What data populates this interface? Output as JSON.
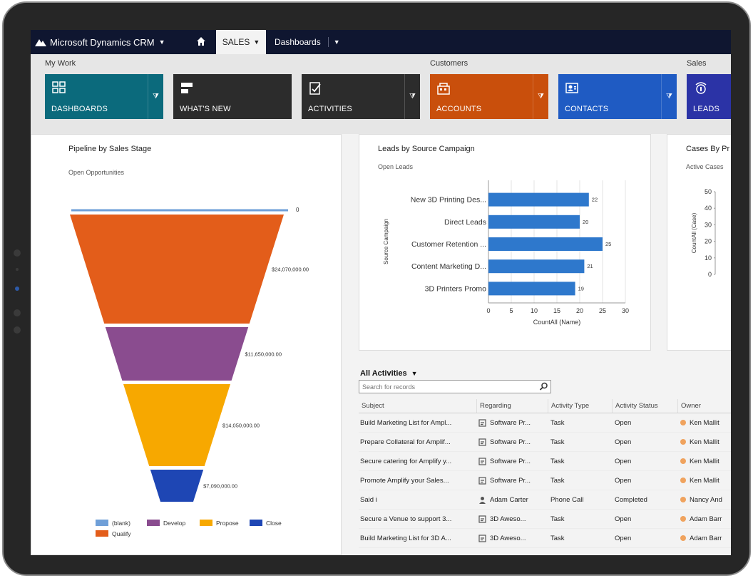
{
  "nav": {
    "brand": "Microsoft Dynamics CRM",
    "active_area": "SALES",
    "dashboards": "Dashboards"
  },
  "ribbon": {
    "groups": [
      "My Work",
      "Customers",
      "Sales"
    ],
    "tiles": [
      {
        "label": "DASHBOARDS",
        "color": "#0b6a7c",
        "icon": "dashboard-icon"
      },
      {
        "label": "WHAT'S NEW",
        "color": "#2c2c2c",
        "icon": "whats-new-icon"
      },
      {
        "label": "ACTIVITIES",
        "color": "#2c2c2c",
        "icon": "activities-icon"
      },
      {
        "label": "ACCOUNTS",
        "color": "#c94f0c",
        "icon": "accounts-icon"
      },
      {
        "label": "CONTACTS",
        "color": "#1f5bc3",
        "icon": "contacts-icon"
      },
      {
        "label": "LEADS",
        "color": "#2b33a6",
        "icon": "leads-icon"
      }
    ]
  },
  "pipeline": {
    "title": "Pipeline by Sales Stage",
    "subtitle": "Open Opportunities"
  },
  "leads_chart": {
    "title": "Leads by Source Campaign",
    "subtitle": "Open Leads"
  },
  "cases": {
    "title": "Cases By Pr",
    "subtitle": "Active Cases",
    "ylabel": "CountAll (Case)",
    "ticks": [
      "50",
      "40",
      "30",
      "20",
      "10",
      "0"
    ]
  },
  "chart_data": [
    {
      "type": "funnel",
      "title": "Pipeline by Sales Stage",
      "subtitle": "Open Opportunities",
      "categories": [
        "(blank)",
        "Qualify",
        "Develop",
        "Propose",
        "Close"
      ],
      "values": [
        0,
        24070000,
        11650000,
        14050000,
        7090000
      ],
      "value_labels": [
        "0",
        "$24,070,000.00",
        "$11,650,000.00",
        "$14,050,000.00",
        "$7,090,000.00"
      ],
      "colors": [
        "#6f9fd8",
        "#e35d1a",
        "#8a4c8f",
        "#f7a800",
        "#1e46b4"
      ],
      "legend": [
        "(blank)",
        "Develop",
        "Propose",
        "Close",
        "Qualify"
      ],
      "legend_placement": "bottom"
    },
    {
      "type": "bar",
      "orientation": "horizontal",
      "title": "Leads by Source Campaign",
      "subtitle": "Open Leads",
      "categories": [
        "New 3D Printing Des...",
        "Direct Leads",
        "Customer Retention ...",
        "Content Marketing D...",
        "3D Printers Promo"
      ],
      "values": [
        22,
        20,
        25,
        21,
        19
      ],
      "xlabel": "CountAll (Name)",
      "ylabel": "Source Campaign",
      "xlim": [
        0,
        30
      ],
      "xticks": [
        0,
        5,
        10,
        15,
        20,
        25,
        30
      ],
      "color": "#2e78cc",
      "grid": true
    }
  ],
  "activities": {
    "title": "All Activities",
    "search_placeholder": "Search for records",
    "columns": [
      "Subject",
      "Regarding",
      "Activity Type",
      "Activity Status",
      "Owner"
    ],
    "rows": [
      {
        "subject": "Build Marketing List for Ampl...",
        "regarding": "Software Pr...",
        "type": "Task",
        "status": "Open",
        "owner": "Ken Mallit"
      },
      {
        "subject": "Prepare Collateral for Amplif...",
        "regarding": "Software Pr...",
        "type": "Task",
        "status": "Open",
        "owner": "Ken Mallit"
      },
      {
        "subject": "Secure catering for Amplify y...",
        "regarding": "Software Pr...",
        "type": "Task",
        "status": "Open",
        "owner": "Ken Mallit"
      },
      {
        "subject": "Promote Amplify your Sales...",
        "regarding": "Software Pr...",
        "type": "Task",
        "status": "Open",
        "owner": "Ken Mallit"
      },
      {
        "subject": "Said i",
        "regarding": "Adam Carter",
        "type": "Phone Call",
        "status": "Completed",
        "owner": "Nancy And"
      },
      {
        "subject": "Secure a Venue to support 3...",
        "regarding": "3D Aweso...",
        "type": "Task",
        "status": "Open",
        "owner": "Adam Barr"
      },
      {
        "subject": "Build Marketing List for 3D A...",
        "regarding": "3D Aweso...",
        "type": "Task",
        "status": "Open",
        "owner": "Adam Barr"
      }
    ]
  }
}
